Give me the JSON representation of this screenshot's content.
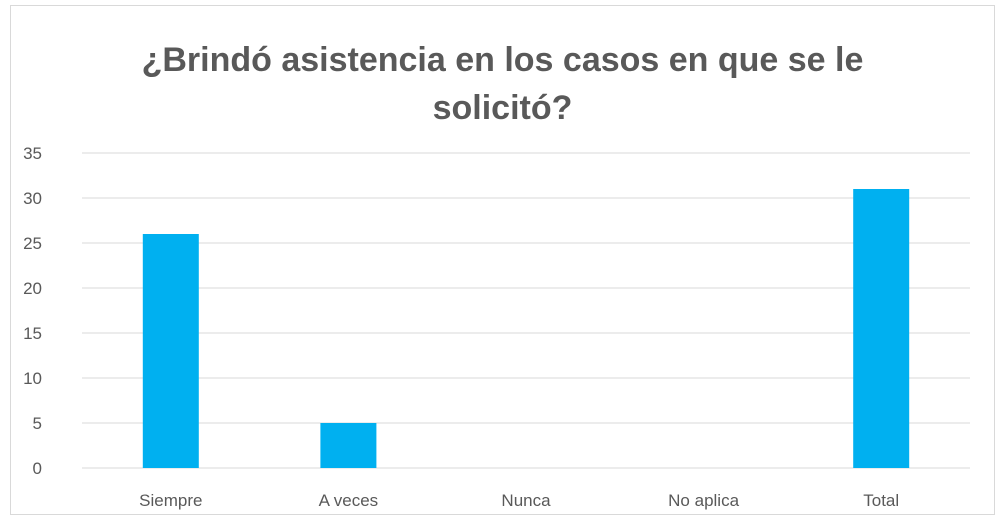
{
  "chart_data": {
    "type": "bar",
    "title_lines": [
      "¿Brindó asistencia en los casos en que se le",
      "solicitó?"
    ],
    "categories": [
      "Siempre",
      "A veces",
      "Nunca",
      "No aplica",
      "Total"
    ],
    "values": [
      26,
      5,
      0,
      0,
      31
    ],
    "ylim": [
      0,
      35
    ],
    "yticks": [
      0,
      5,
      10,
      15,
      20,
      25,
      30,
      35
    ],
    "grid": true,
    "legend": "none",
    "bar_color": "#00b0f0",
    "grid_color": "#d9d9d9",
    "text_color": "#595959"
  }
}
